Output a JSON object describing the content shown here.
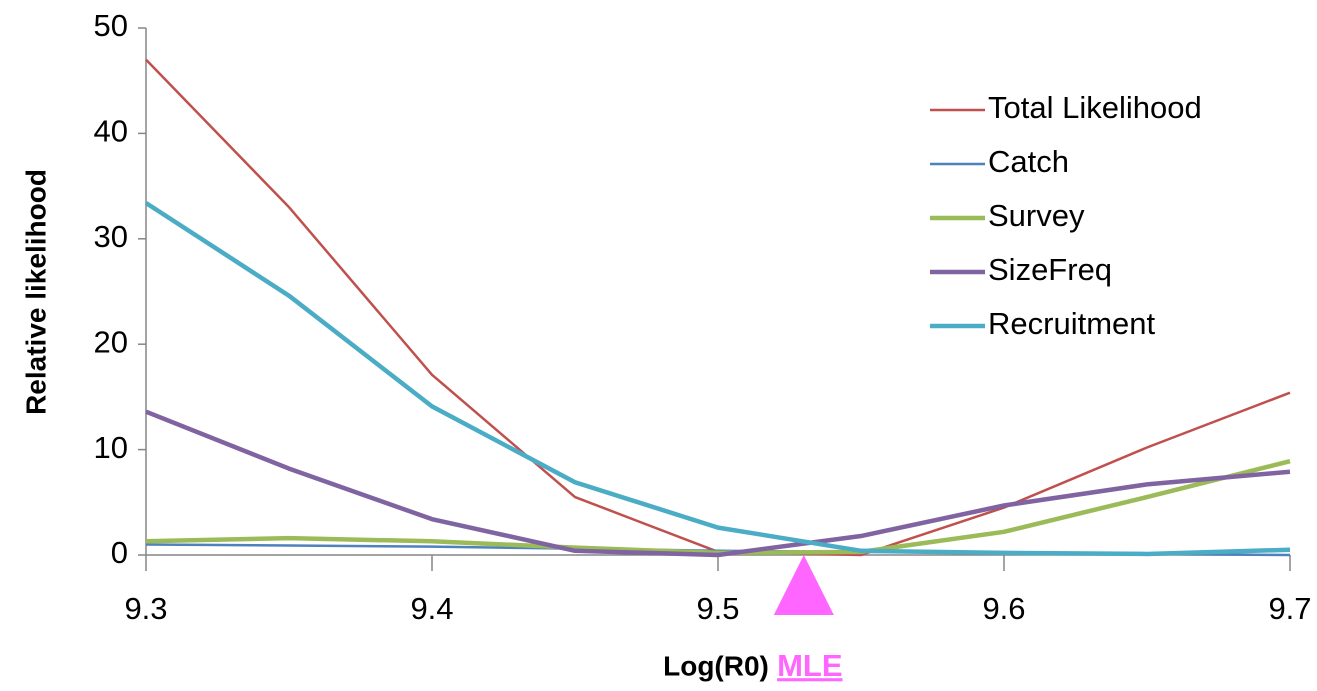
{
  "chart_data": {
    "type": "line",
    "x_label": "Log(R0)",
    "y_label": "Relative likelihood",
    "x": [
      9.3,
      9.35,
      9.4,
      9.45,
      9.5,
      9.55,
      9.6,
      9.65,
      9.7
    ],
    "series": [
      {
        "name": "Total Likelihood",
        "color": "#c0504d",
        "values": [
          47,
          33,
          17.1,
          5.5,
          0.3,
          0,
          4.5,
          10.2,
          15.4
        ]
      },
      {
        "name": "Catch",
        "color": "#4f81bd",
        "values": [
          1.0,
          0.9,
          0.8,
          0.6,
          0.4,
          0.3,
          0.2,
          0.1,
          0.0
        ]
      },
      {
        "name": "Survey",
        "color": "#9bbb59",
        "values": [
          1.3,
          1.6,
          1.3,
          0.7,
          0.2,
          0.3,
          2.2,
          5.5,
          8.9
        ]
      },
      {
        "name": "SizeFreq",
        "color": "#8064a2",
        "values": [
          13.6,
          8.2,
          3.4,
          0.4,
          0.0,
          1.8,
          4.7,
          6.7,
          7.9
        ]
      },
      {
        "name": "Recruitment",
        "color": "#4bacc6",
        "values": [
          33.4,
          24.6,
          14.1,
          6.9,
          2.6,
          0.4,
          0.2,
          0.1,
          0.5
        ]
      }
    ],
    "xlim": [
      9.3,
      9.7
    ],
    "ylim": [
      0,
      50
    ],
    "xticks": [
      9.3,
      9.4,
      9.5,
      9.6,
      9.7
    ],
    "yticks": [
      0,
      10,
      20,
      30,
      40,
      50
    ],
    "grid": false,
    "legend_position": "upper-right",
    "annotation": {
      "text": "MLE",
      "x": 9.53,
      "color": "#ff66ff"
    }
  }
}
